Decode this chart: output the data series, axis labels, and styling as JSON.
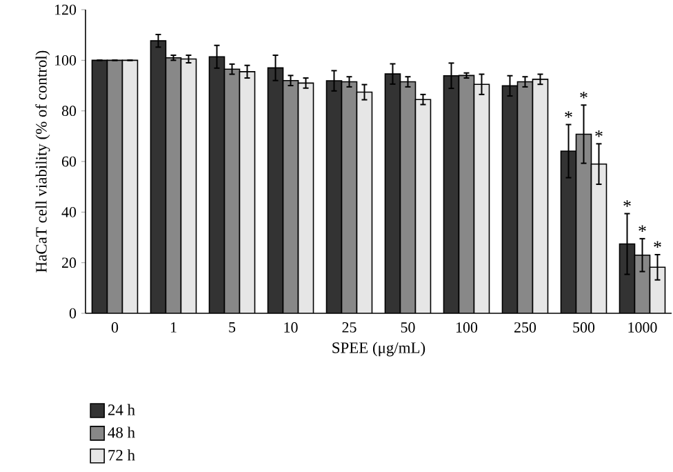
{
  "chart_data": {
    "type": "bar",
    "xlabel": "SPEE (μg/mL)",
    "ylabel": "HaCaT cell viability (% of control)",
    "categories": [
      "0",
      "1",
      "5",
      "10",
      "25",
      "50",
      "100",
      "250",
      "500",
      "1000"
    ],
    "series": [
      {
        "name": "24 h",
        "color": "#333333",
        "values": [
          100,
          107.7,
          101.4,
          97,
          91.9,
          94.6,
          93.9,
          89.9,
          64.1,
          27.4
        ],
        "errors": [
          null,
          2.5,
          4.5,
          5,
          4,
          4,
          5,
          4,
          10.5,
          12
        ]
      },
      {
        "name": "48 h",
        "color": "#888888",
        "values": [
          100,
          101,
          96.5,
          92,
          91.5,
          91.5,
          94,
          91.5,
          70.8,
          23
        ],
        "errors": [
          null,
          1,
          2,
          2,
          2,
          2,
          1,
          2,
          11.5,
          6.5
        ]
      },
      {
        "name": "72 h",
        "color": "#e6e6e6",
        "values": [
          100,
          100.5,
          95.5,
          91,
          87.4,
          84.5,
          90.5,
          92.5,
          59,
          18.2
        ],
        "errors": [
          null,
          1.5,
          2.5,
          2,
          3,
          2,
          4,
          2,
          8,
          5
        ]
      }
    ],
    "ylim": [
      0,
      120
    ],
    "yticks": [
      0,
      20,
      40,
      60,
      80,
      100,
      120
    ],
    "legend": "bottom left",
    "annotations": [
      {
        "text": "*",
        "x": "500",
        "y": 64.1
      },
      {
        "text": "*",
        "x": "500",
        "y": 70.8
      },
      {
        "text": "*",
        "x": "500",
        "y": 59
      },
      {
        "text": "*",
        "x": "1000",
        "y": 27.4
      },
      {
        "text": "*",
        "x": "1000",
        "y": 23
      },
      {
        "text": "*",
        "x": "1000",
        "y": 18.2
      }
    ]
  }
}
